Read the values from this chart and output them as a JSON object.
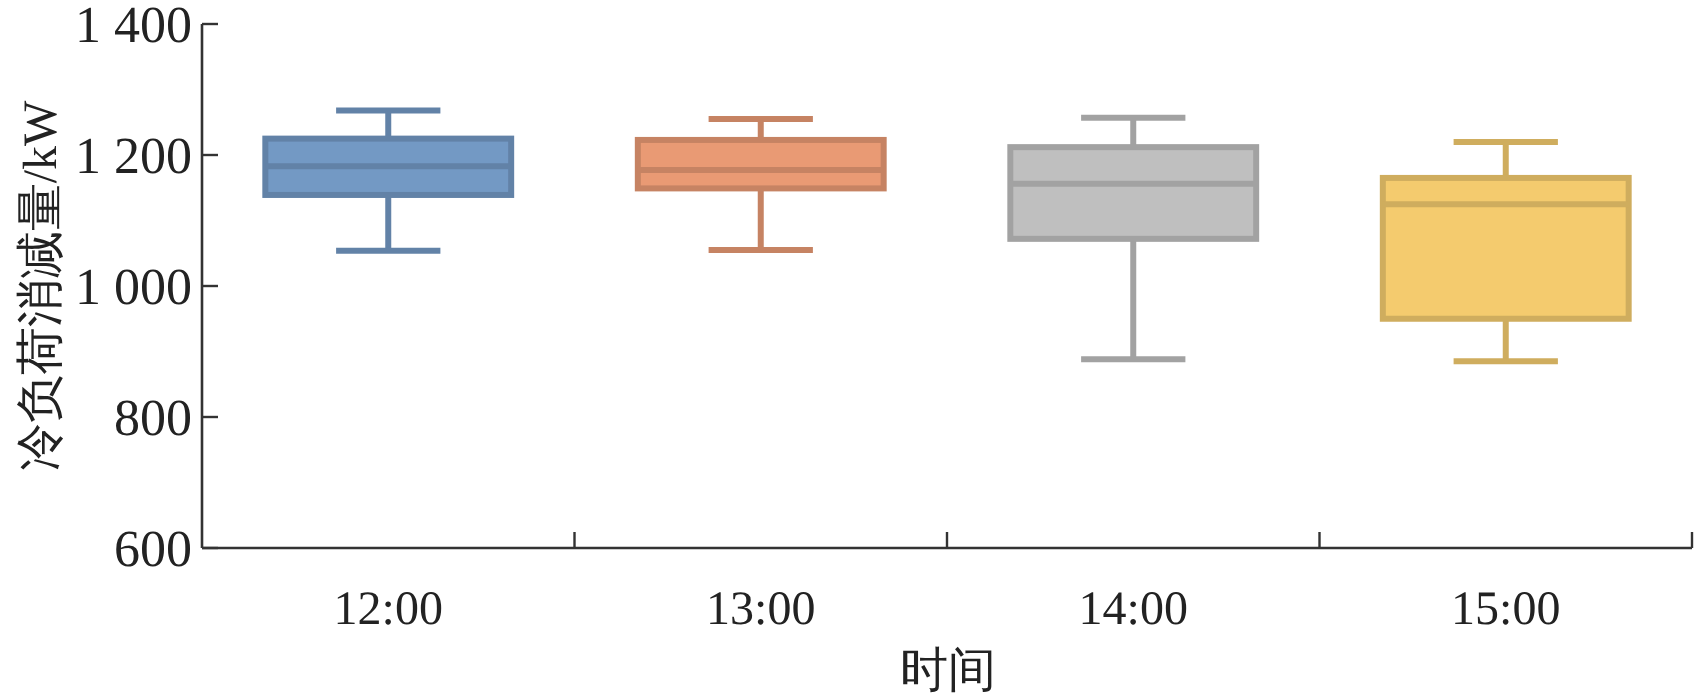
{
  "chart_data": {
    "type": "box",
    "xlabel": "时间",
    "ylabel": "冷负荷消减量/kW",
    "categories": [
      "12:00",
      "13:00",
      "14:00",
      "15:00"
    ],
    "boxes": [
      {
        "low": 1054,
        "q1": 1139,
        "median": 1183,
        "q3": 1225,
        "high": 1268
      },
      {
        "low": 1055,
        "q1": 1149,
        "median": 1177,
        "q3": 1223,
        "high": 1255
      },
      {
        "low": 888,
        "q1": 1072,
        "median": 1156,
        "q3": 1212,
        "high": 1257
      },
      {
        "low": 885,
        "q1": 950,
        "median": 1125,
        "q3": 1165,
        "high": 1220
      }
    ],
    "colors": [
      "#7399c4",
      "#e99a74",
      "#bfbfbf",
      "#f4cb6e"
    ],
    "ylim": [
      600,
      1400
    ],
    "yticks": [
      600,
      800,
      {
        "value": 1000,
        "label": "1 000"
      },
      {
        "value": 1200,
        "label": "1 200"
      },
      {
        "value": 1400,
        "label": "1 400"
      }
    ],
    "grid": false
  }
}
